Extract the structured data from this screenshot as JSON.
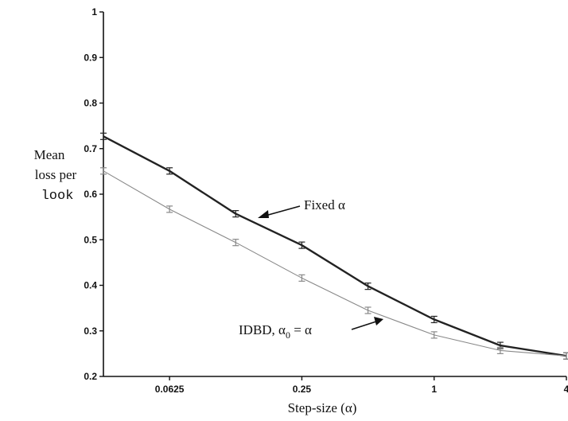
{
  "chart_data": {
    "type": "line",
    "x": [
      0.03125,
      0.0625,
      0.125,
      0.25,
      0.5,
      1,
      2,
      4
    ],
    "x_tick_labels": [
      "0.0625",
      "0.25",
      "1",
      "4"
    ],
    "x_tick_values": [
      0.0625,
      0.25,
      1,
      4
    ],
    "xscale": "log2",
    "xlim": [
      0.03125,
      4
    ],
    "ylim": [
      0.2,
      1.0
    ],
    "y_ticks": [
      0.2,
      0.3,
      0.4,
      0.5,
      0.6,
      0.7,
      0.8,
      0.9,
      1
    ],
    "y_tick_labels": [
      "0.2",
      "0.3",
      "0.4",
      "0.5",
      "0.6",
      "0.7",
      "0.8",
      "0.9",
      "1"
    ],
    "xlabel": "Step-size (α)",
    "ylabel": [
      "Mean",
      "loss per",
      "look"
    ],
    "series": [
      {
        "name": "Fixed α",
        "values": [
          0.727,
          0.651,
          0.557,
          0.488,
          0.398,
          0.325,
          0.268,
          0.245
        ],
        "color": "#222222"
      },
      {
        "name": "IDBD, α0 = α",
        "values": [
          0.651,
          0.567,
          0.494,
          0.416,
          0.345,
          0.291,
          0.257,
          0.245
        ],
        "color": "#888888"
      }
    ],
    "annotations": [
      {
        "text": "Fixed α",
        "series": 0
      },
      {
        "text_main": "IDBD, α",
        "text_sub": "0",
        "text_tail": " = α",
        "series": 1
      }
    ],
    "grid": false,
    "error_bars": true
  }
}
